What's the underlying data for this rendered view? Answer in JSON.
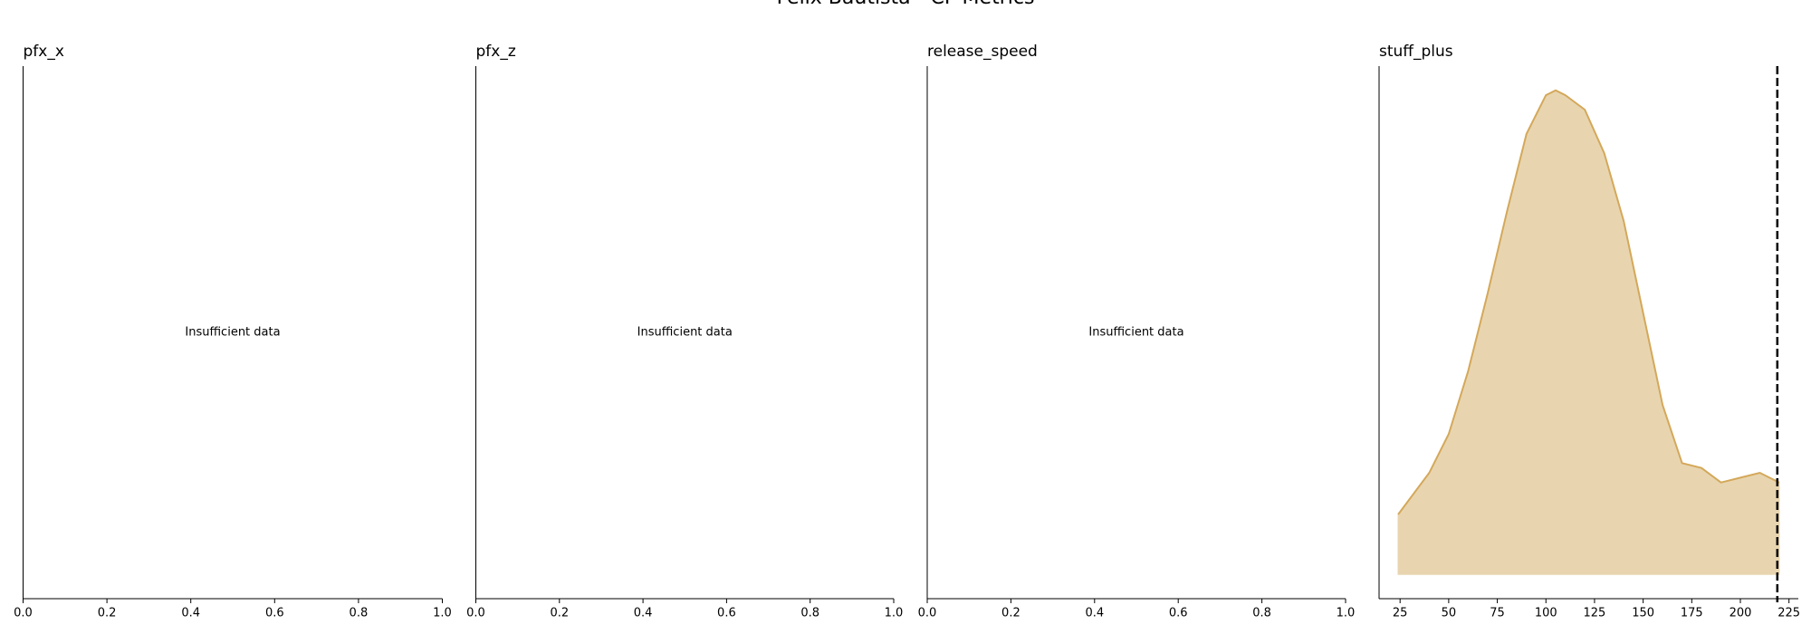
{
  "title": "Felix Bautista - CF Metrics",
  "chart_data": [
    {
      "type": "empty",
      "title": "pfx_x",
      "annotation": "Insufficient data",
      "xlim": [
        0,
        1
      ],
      "xticks": [
        {
          "value": 0,
          "label": "0.0"
        },
        {
          "value": 0.2,
          "label": "0.2"
        },
        {
          "value": 0.4,
          "label": "0.4"
        },
        {
          "value": 0.6,
          "label": "0.6"
        },
        {
          "value": 0.8,
          "label": "0.8"
        },
        {
          "value": 1,
          "label": "1.0"
        }
      ]
    },
    {
      "type": "empty",
      "title": "pfx_z",
      "annotation": "Insufficient data",
      "xlim": [
        0,
        1
      ],
      "xticks": [
        {
          "value": 0,
          "label": "0.0"
        },
        {
          "value": 0.2,
          "label": "0.2"
        },
        {
          "value": 0.4,
          "label": "0.4"
        },
        {
          "value": 0.6,
          "label": "0.6"
        },
        {
          "value": 0.8,
          "label": "0.8"
        },
        {
          "value": 1,
          "label": "1.0"
        }
      ]
    },
    {
      "type": "empty",
      "title": "release_speed",
      "annotation": "Insufficient data",
      "xlim": [
        0,
        1
      ],
      "xticks": [
        {
          "value": 0,
          "label": "0.0"
        },
        {
          "value": 0.2,
          "label": "0.2"
        },
        {
          "value": 0.4,
          "label": "0.4"
        },
        {
          "value": 0.6,
          "label": "0.6"
        },
        {
          "value": 0.8,
          "label": "0.8"
        },
        {
          "value": 1,
          "label": "1.0"
        }
      ]
    },
    {
      "type": "area",
      "title": "stuff_plus",
      "x": [
        24,
        40,
        50,
        60,
        70,
        80,
        90,
        100,
        105,
        110,
        120,
        130,
        140,
        150,
        160,
        170,
        180,
        190,
        200,
        210,
        220
      ],
      "values": [
        0.124,
        0.21,
        0.29,
        0.42,
        0.58,
        0.75,
        0.91,
        0.99,
        1.0,
        0.99,
        0.96,
        0.87,
        0.73,
        0.54,
        0.35,
        0.23,
        0.22,
        0.19,
        0.2,
        0.21,
        0.19
      ],
      "color": "#e8d5b0",
      "edgecolor": "#d4a85a",
      "xlim": [
        14.2,
        229.8
      ],
      "ylim": [
        -0.05,
        1.05
      ],
      "xticks": [
        25,
        50,
        75,
        100,
        125,
        150,
        175,
        200,
        225
      ],
      "vline": 219
    }
  ]
}
